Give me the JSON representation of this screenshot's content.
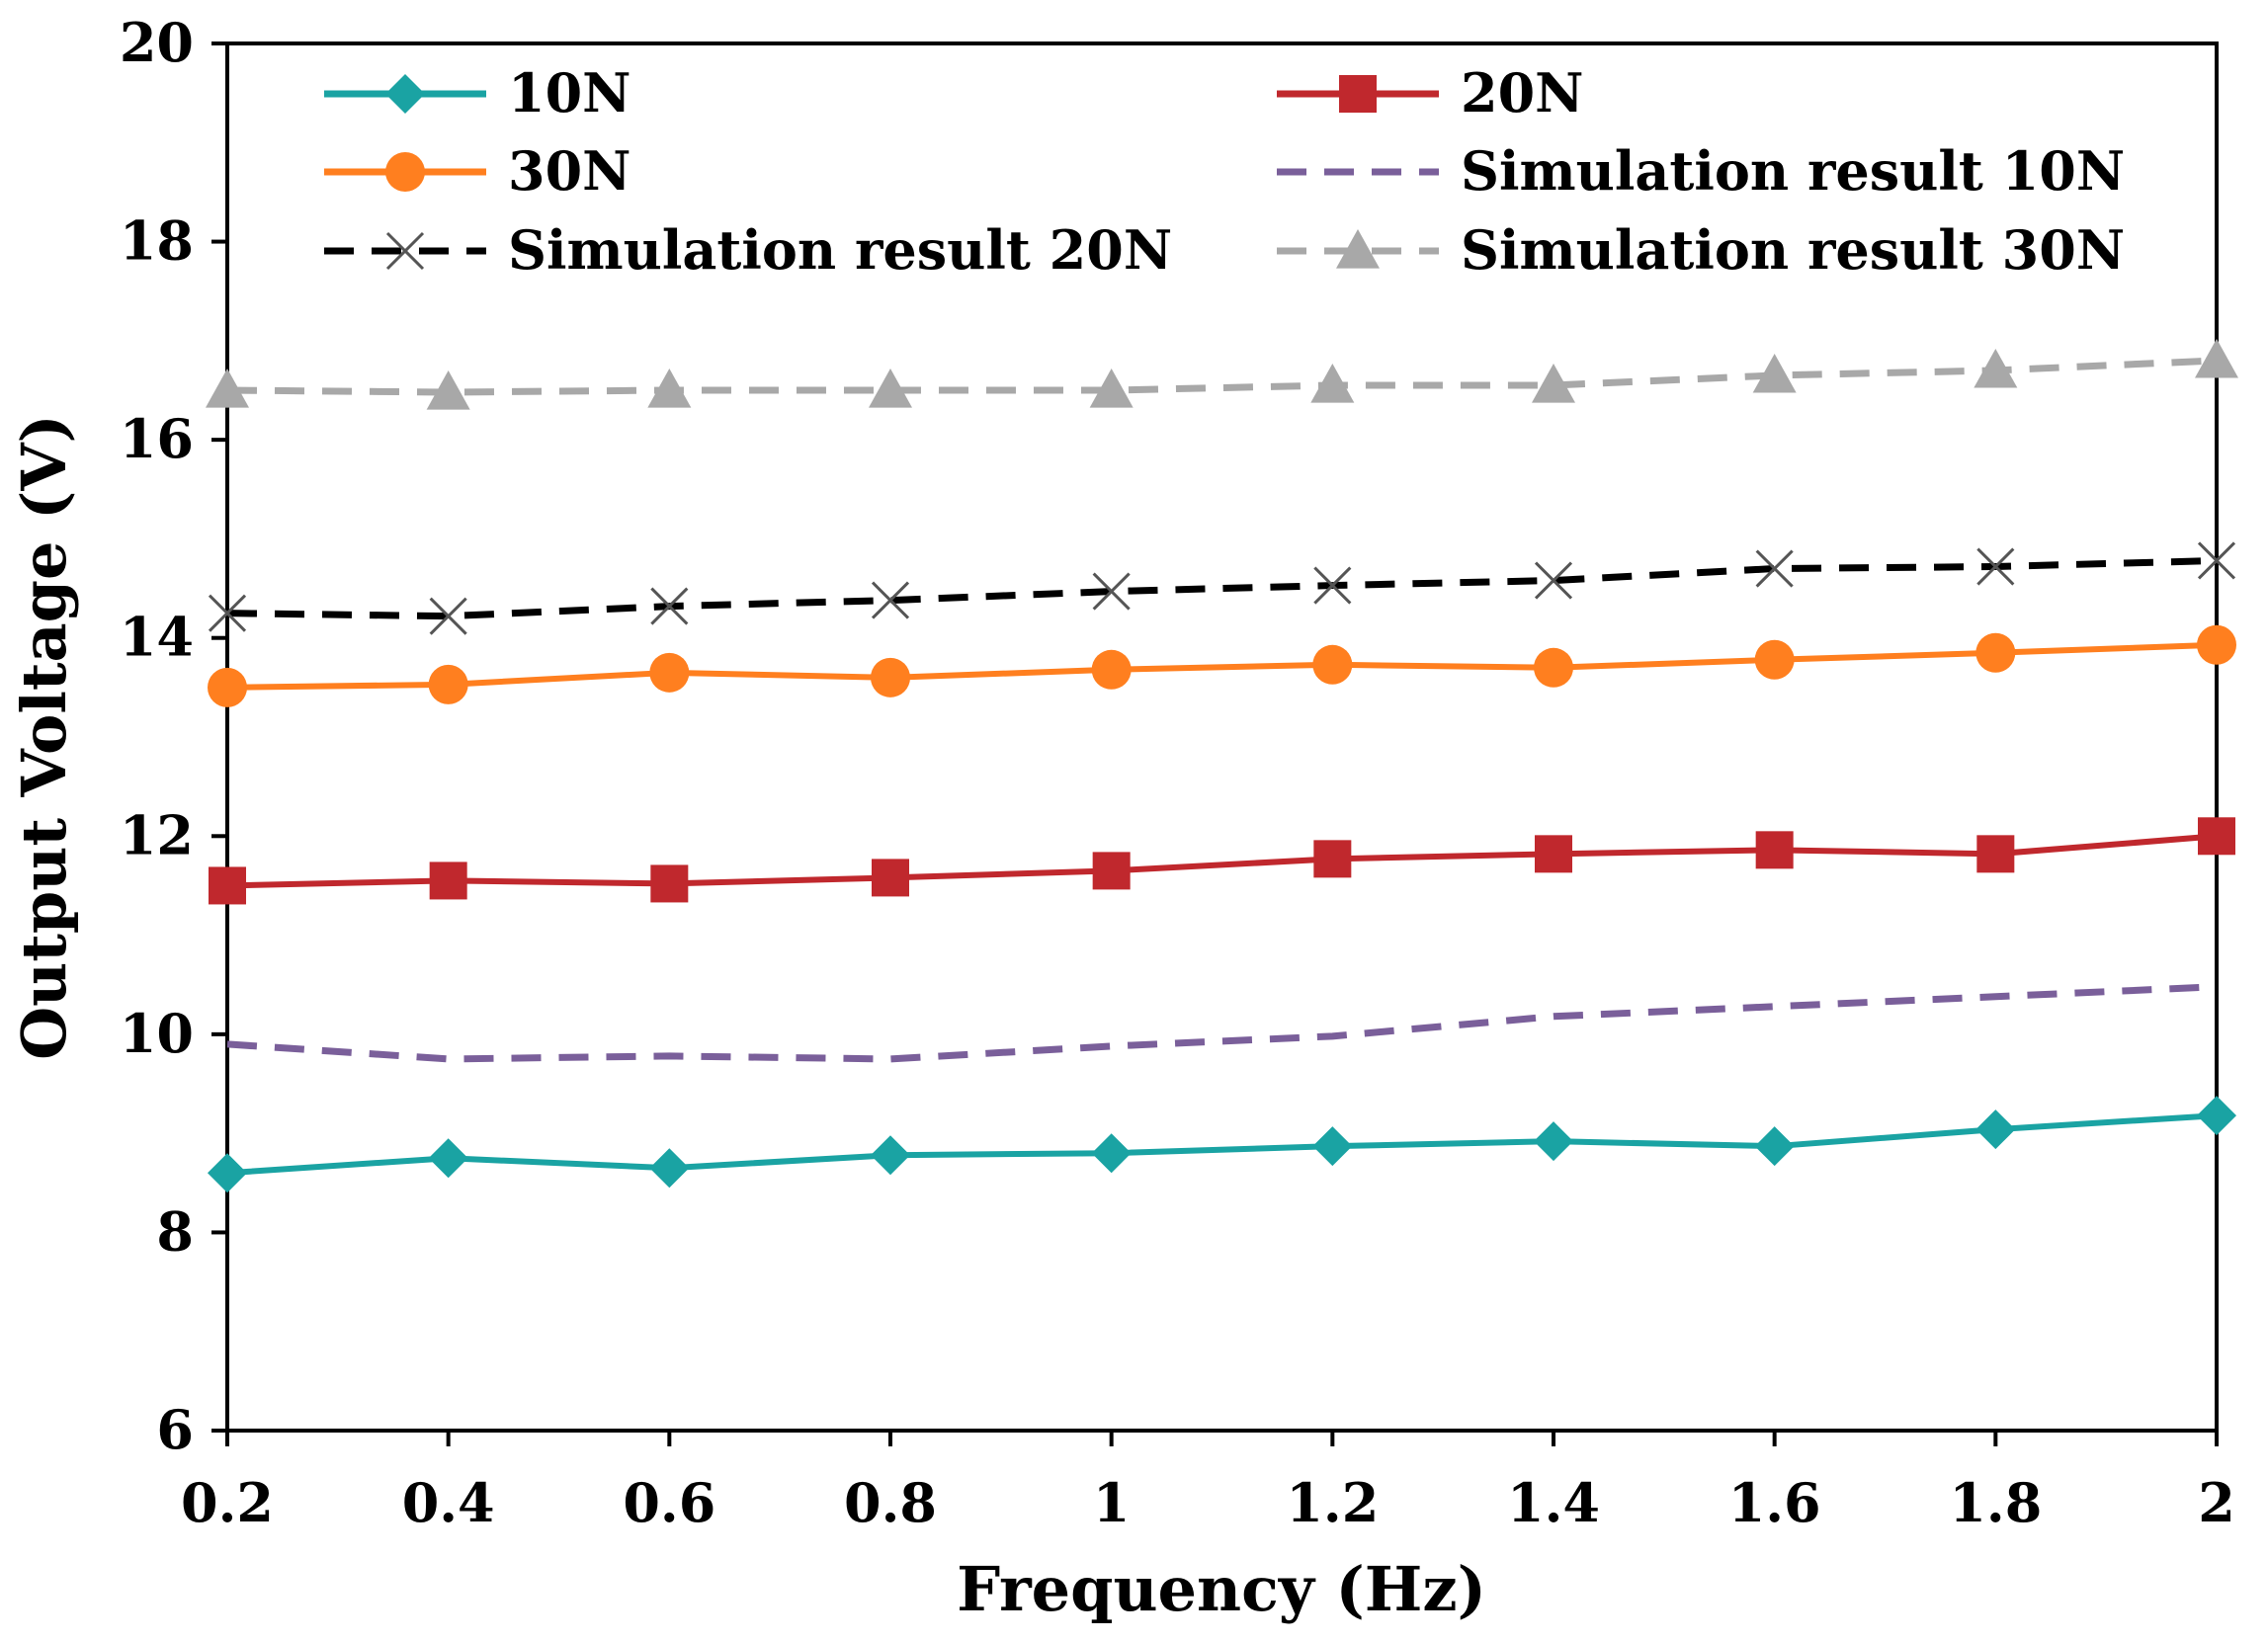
{
  "chart_data": {
    "type": "line",
    "title": "",
    "xlabel": "Frequency (Hz)",
    "ylabel": "Output Voltage (V)",
    "x": [
      0.2,
      0.4,
      0.6,
      0.8,
      1,
      1.2,
      1.4,
      1.6,
      1.8,
      2
    ],
    "x_tick_labels": [
      "0.2",
      "0.4",
      "0.6",
      "0.8",
      "1",
      "1.2",
      "1.4",
      "1.6",
      "1.8",
      "2"
    ],
    "xlim": [
      0.2,
      2
    ],
    "ylim": [
      6,
      20
    ],
    "y_ticks": [
      6,
      8,
      10,
      12,
      14,
      16,
      18,
      20
    ],
    "y_tick_labels": [
      "6",
      "8",
      "10",
      "12",
      "14",
      "16",
      "18",
      "20"
    ],
    "grid": false,
    "legend_position": "top",
    "series": [
      {
        "name": "10N",
        "color": "#1aa3a3",
        "dash": "solid",
        "marker": "diamond",
        "values": [
          8.6,
          8.75,
          8.65,
          8.78,
          8.8,
          8.87,
          8.92,
          8.87,
          9.04,
          9.18
        ]
      },
      {
        "name": "20N",
        "color": "#c0282d",
        "dash": "solid",
        "marker": "square",
        "values": [
          11.5,
          11.55,
          11.52,
          11.58,
          11.65,
          11.77,
          11.82,
          11.86,
          11.82,
          12.0
        ]
      },
      {
        "name": "30N",
        "color": "#ff7f1f",
        "dash": "solid",
        "marker": "circle",
        "values": [
          13.5,
          13.53,
          13.65,
          13.6,
          13.68,
          13.73,
          13.7,
          13.78,
          13.85,
          13.93
        ]
      },
      {
        "name": "Simulation result 10N",
        "color": "#7a5f9a",
        "dash": "dashed",
        "marker": "none",
        "values": [
          9.9,
          9.75,
          9.78,
          9.75,
          9.88,
          9.98,
          10.18,
          10.28,
          10.38,
          10.48
        ]
      },
      {
        "name": "Simulation result 20N",
        "color": "#000000",
        "dash": "dashed",
        "marker": "x",
        "values": [
          14.25,
          14.22,
          14.32,
          14.38,
          14.47,
          14.53,
          14.58,
          14.7,
          14.72,
          14.78
        ]
      },
      {
        "name": "Simulation result 30N",
        "color": "#a8a8a8",
        "dash": "dashed",
        "marker": "triangle",
        "values": [
          16.5,
          16.48,
          16.5,
          16.5,
          16.5,
          16.55,
          16.55,
          16.65,
          16.7,
          16.8
        ]
      }
    ]
  }
}
